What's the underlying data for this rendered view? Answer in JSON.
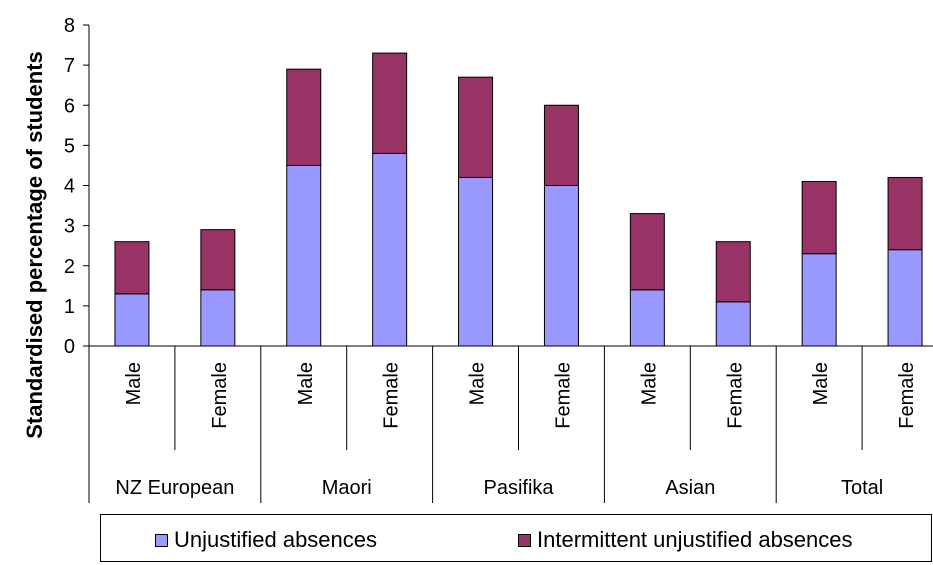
{
  "chart_data": {
    "type": "bar",
    "stacked": true,
    "ylabel": "Standardised percentage of students",
    "ylim": [
      0,
      8
    ],
    "yticks": [
      0,
      1,
      2,
      3,
      4,
      5,
      6,
      7,
      8
    ],
    "grid": false,
    "legend_position": "bottom",
    "categories": [
      "Male",
      "Female",
      "Male",
      "Female",
      "Male",
      "Female",
      "Male",
      "Female",
      "Male",
      "Female"
    ],
    "groups": [
      {
        "label": "NZ European",
        "categories": [
          "Male",
          "Female"
        ]
      },
      {
        "label": "Maori",
        "categories": [
          "Male",
          "Female"
        ]
      },
      {
        "label": "Pasifika",
        "categories": [
          "Male",
          "Female"
        ]
      },
      {
        "label": "Asian",
        "categories": [
          "Male",
          "Female"
        ]
      },
      {
        "label": "Total",
        "categories": [
          "Male",
          "Female"
        ]
      }
    ],
    "series": [
      {
        "name": "Unjustified absences",
        "color": "#9999ff",
        "values": [
          1.3,
          1.4,
          4.5,
          4.8,
          4.2,
          4.0,
          1.4,
          1.1,
          2.3,
          2.4
        ]
      },
      {
        "name": "Intermittent unjustified absences",
        "color": "#993366",
        "values": [
          1.3,
          1.5,
          2.4,
          2.5,
          2.5,
          2.0,
          1.9,
          1.5,
          1.8,
          1.8
        ]
      }
    ]
  }
}
